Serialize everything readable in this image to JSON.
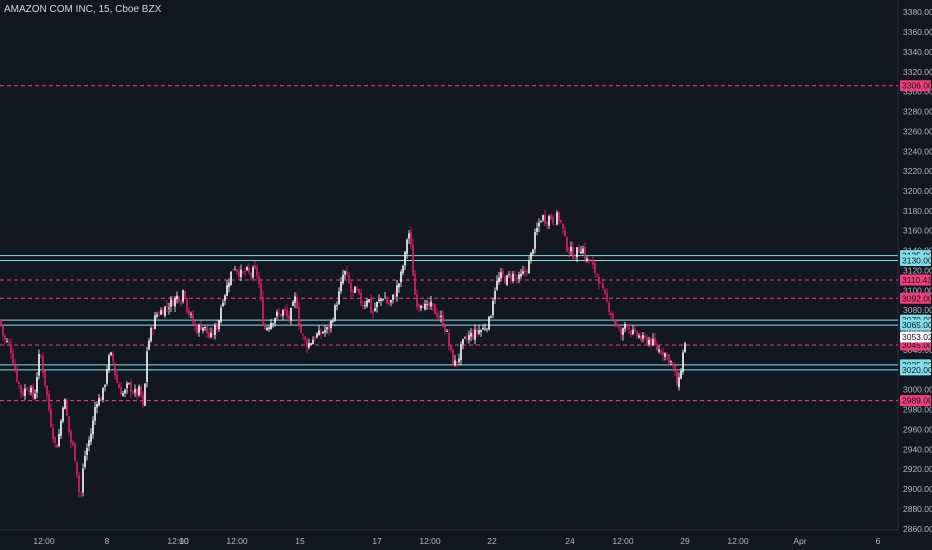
{
  "header": {
    "title": "AMAZON COM INC, 15, Cboe BZX"
  },
  "chart_data": {
    "type": "candlestick",
    "title": "AMAZON COM INC, 15, Cboe BZX",
    "ylim": [
      2840,
      3390
    ],
    "y_ticks": [
      2860,
      2880,
      2900,
      2920,
      2940,
      2960,
      2980,
      3000,
      3020,
      3040,
      3060,
      3080,
      3100,
      3120,
      3140,
      3160,
      3180,
      3200,
      3220,
      3240,
      3260,
      3280,
      3300,
      3320,
      3340,
      3360,
      3380
    ],
    "x_ticks": [
      "12:00",
      "8",
      "12:00",
      "10",
      "12:00",
      "15",
      "17",
      "12:00",
      "22",
      "24",
      "12:00",
      "29",
      "12:00",
      "Apr",
      "6"
    ],
    "last_price": 3053.02,
    "levels": [
      {
        "price": 3306.0,
        "style": "dashed",
        "color": "#f23d7a"
      },
      {
        "price": 3135.0,
        "style": "solid",
        "color": "#80deea"
      },
      {
        "price": 3130.0,
        "style": "solid",
        "color": "#80deea"
      },
      {
        "price": 3110.43,
        "style": "dashed",
        "color": "#f23d7a"
      },
      {
        "price": 3092.0,
        "style": "dashed",
        "color": "#f23d7a"
      },
      {
        "price": 3070.0,
        "style": "solid",
        "color": "#80deea"
      },
      {
        "price": 3065.0,
        "style": "solid",
        "color": "#80deea"
      },
      {
        "price": 3045.0,
        "style": "dashed",
        "color": "#f23d7a"
      },
      {
        "price": 3025.0,
        "style": "solid",
        "color": "#80deea"
      },
      {
        "price": 3020.0,
        "style": "solid",
        "color": "#80deea"
      },
      {
        "price": 2989.0,
        "style": "dashed",
        "color": "#f23d7a"
      }
    ],
    "price_path": [
      [
        0,
        3070
      ],
      [
        4,
        3050
      ],
      [
        10,
        3045
      ],
      [
        16,
        3015
      ],
      [
        22,
        2995
      ],
      [
        28,
        3005
      ],
      [
        34,
        2990
      ],
      [
        40,
        3040
      ],
      [
        46,
        3000
      ],
      [
        52,
        2960
      ],
      [
        56,
        2940
      ],
      [
        60,
        2960
      ],
      [
        64,
        2995
      ],
      [
        70,
        2950
      ],
      [
        74,
        2940
      ],
      [
        78,
        2910
      ],
      [
        80,
        2885
      ],
      [
        84,
        2930
      ],
      [
        88,
        2945
      ],
      [
        92,
        2960
      ],
      [
        96,
        2990
      ],
      [
        100,
        2990
      ],
      [
        104,
        3000
      ],
      [
        108,
        3030
      ],
      [
        112,
        3035
      ],
      [
        116,
        3010
      ],
      [
        120,
        3000
      ],
      [
        124,
        2995
      ],
      [
        128,
        3005
      ],
      [
        132,
        3000
      ],
      [
        136,
        2995
      ],
      [
        140,
        3000
      ],
      [
        144,
        2975
      ],
      [
        146,
        3035
      ],
      [
        150,
        3055
      ],
      [
        156,
        3075
      ],
      [
        162,
        3080
      ],
      [
        168,
        3085
      ],
      [
        174,
        3090
      ],
      [
        178,
        3095
      ],
      [
        182,
        3090
      ],
      [
        184,
        3110
      ],
      [
        186,
        3085
      ],
      [
        190,
        3075
      ],
      [
        196,
        3060
      ],
      [
        202,
        3065
      ],
      [
        206,
        3060
      ],
      [
        210,
        3050
      ],
      [
        214,
        3060
      ],
      [
        218,
        3065
      ],
      [
        222,
        3090
      ],
      [
        226,
        3100
      ],
      [
        230,
        3115
      ],
      [
        234,
        3125
      ],
      [
        238,
        3120
      ],
      [
        242,
        3115
      ],
      [
        246,
        3120
      ],
      [
        250,
        3115
      ],
      [
        254,
        3120
      ],
      [
        258,
        3115
      ],
      [
        262,
        3080
      ],
      [
        264,
        3060
      ],
      [
        268,
        3065
      ],
      [
        272,
        3070
      ],
      [
        276,
        3075
      ],
      [
        280,
        3075
      ],
      [
        284,
        3080
      ],
      [
        288,
        3070
      ],
      [
        292,
        3080
      ],
      [
        296,
        3095
      ],
      [
        300,
        3060
      ],
      [
        304,
        3050
      ],
      [
        308,
        3045
      ],
      [
        312,
        3050
      ],
      [
        316,
        3055
      ],
      [
        320,
        3055
      ],
      [
        324,
        3060
      ],
      [
        328,
        3060
      ],
      [
        332,
        3070
      ],
      [
        336,
        3085
      ],
      [
        340,
        3100
      ],
      [
        344,
        3120
      ],
      [
        348,
        3110
      ],
      [
        352,
        3095
      ],
      [
        356,
        3100
      ],
      [
        360,
        3090
      ],
      [
        364,
        3085
      ],
      [
        368,
        3095
      ],
      [
        372,
        3075
      ],
      [
        376,
        3085
      ],
      [
        380,
        3090
      ],
      [
        384,
        3095
      ],
      [
        388,
        3085
      ],
      [
        392,
        3090
      ],
      [
        396,
        3100
      ],
      [
        400,
        3110
      ],
      [
        404,
        3130
      ],
      [
        406,
        3140
      ],
      [
        408,
        3165
      ],
      [
        410,
        3150
      ],
      [
        412,
        3135
      ],
      [
        414,
        3100
      ],
      [
        418,
        3085
      ],
      [
        422,
        3090
      ],
      [
        426,
        3080
      ],
      [
        430,
        3085
      ],
      [
        434,
        3080
      ],
      [
        438,
        3075
      ],
      [
        442,
        3070
      ],
      [
        446,
        3060
      ],
      [
        450,
        3040
      ],
      [
        454,
        3025
      ],
      [
        458,
        3030
      ],
      [
        462,
        3045
      ],
      [
        466,
        3050
      ],
      [
        470,
        3055
      ],
      [
        474,
        3055
      ],
      [
        478,
        3060
      ],
      [
        482,
        3060
      ],
      [
        486,
        3065
      ],
      [
        490,
        3070
      ],
      [
        494,
        3100
      ],
      [
        498,
        3110
      ],
      [
        502,
        3115
      ],
      [
        506,
        3110
      ],
      [
        510,
        3115
      ],
      [
        514,
        3115
      ],
      [
        518,
        3110
      ],
      [
        522,
        3115
      ],
      [
        526,
        3120
      ],
      [
        530,
        3130
      ],
      [
        534,
        3150
      ],
      [
        538,
        3165
      ],
      [
        542,
        3175
      ],
      [
        546,
        3170
      ],
      [
        550,
        3175
      ],
      [
        554,
        3170
      ],
      [
        558,
        3175
      ],
      [
        562,
        3165
      ],
      [
        566,
        3145
      ],
      [
        570,
        3140
      ],
      [
        574,
        3135
      ],
      [
        578,
        3140
      ],
      [
        582,
        3145
      ],
      [
        586,
        3130
      ],
      [
        590,
        3130
      ],
      [
        594,
        3120
      ],
      [
        598,
        3115
      ],
      [
        602,
        3100
      ],
      [
        606,
        3090
      ],
      [
        610,
        3080
      ],
      [
        614,
        3070
      ],
      [
        618,
        3060
      ],
      [
        622,
        3055
      ],
      [
        626,
        3070
      ],
      [
        630,
        3060
      ],
      [
        634,
        3055
      ],
      [
        638,
        3055
      ],
      [
        642,
        3050
      ],
      [
        646,
        3050
      ],
      [
        650,
        3050
      ],
      [
        654,
        3045
      ],
      [
        658,
        3040
      ],
      [
        662,
        3040
      ],
      [
        666,
        3035
      ],
      [
        670,
        3030
      ],
      [
        674,
        3020
      ],
      [
        678,
        3000
      ],
      [
        682,
        3030
      ],
      [
        686,
        3055
      ]
    ]
  }
}
